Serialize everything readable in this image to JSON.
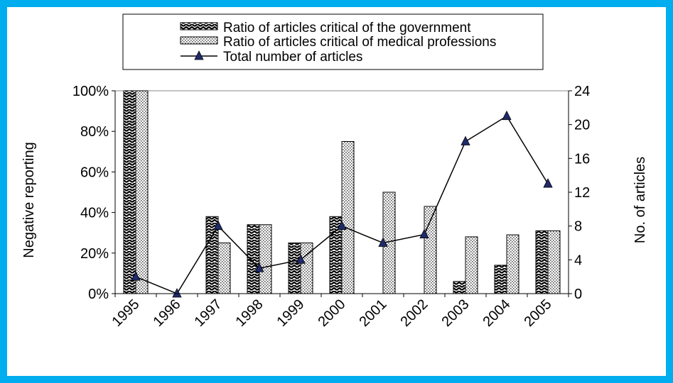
{
  "chart_data": {
    "type": "bar",
    "categories": [
      "1995",
      "1996",
      "1997",
      "1998",
      "1999",
      "2000",
      "2001",
      "2002",
      "2003",
      "2004",
      "2005"
    ],
    "series": [
      {
        "name": "Ratio of articles critical of the government",
        "axis": "left",
        "kind": "bar",
        "pattern": "zigzag",
        "values": [
          100,
          0,
          38,
          34,
          25,
          38,
          0,
          0,
          6,
          14,
          31
        ]
      },
      {
        "name": "Ratio of articles critical of medical professions",
        "axis": "left",
        "kind": "bar",
        "pattern": "dots",
        "values": [
          100,
          0,
          25,
          34,
          25,
          75,
          50,
          43,
          28,
          29,
          31
        ]
      },
      {
        "name": "Total number of articles",
        "axis": "right",
        "kind": "line",
        "marker": "triangle",
        "color": "#1F2A6B",
        "values": [
          2,
          0,
          8,
          3,
          4,
          8,
          6,
          7,
          18,
          21,
          13
        ]
      }
    ],
    "ylabel": "Negative reporting",
    "y2label": "No. of articles",
    "ylim": [
      0,
      100
    ],
    "y2lim": [
      0,
      24
    ],
    "yticks": [
      "0%",
      "20%",
      "40%",
      "60%",
      "80%",
      "100%"
    ],
    "y2ticks": [
      "0",
      "4",
      "8",
      "12",
      "16",
      "20",
      "24"
    ],
    "legend": "top-center",
    "grid": false,
    "colors": {
      "background": "#00AEEF",
      "marker": "#1F2A6B"
    }
  }
}
